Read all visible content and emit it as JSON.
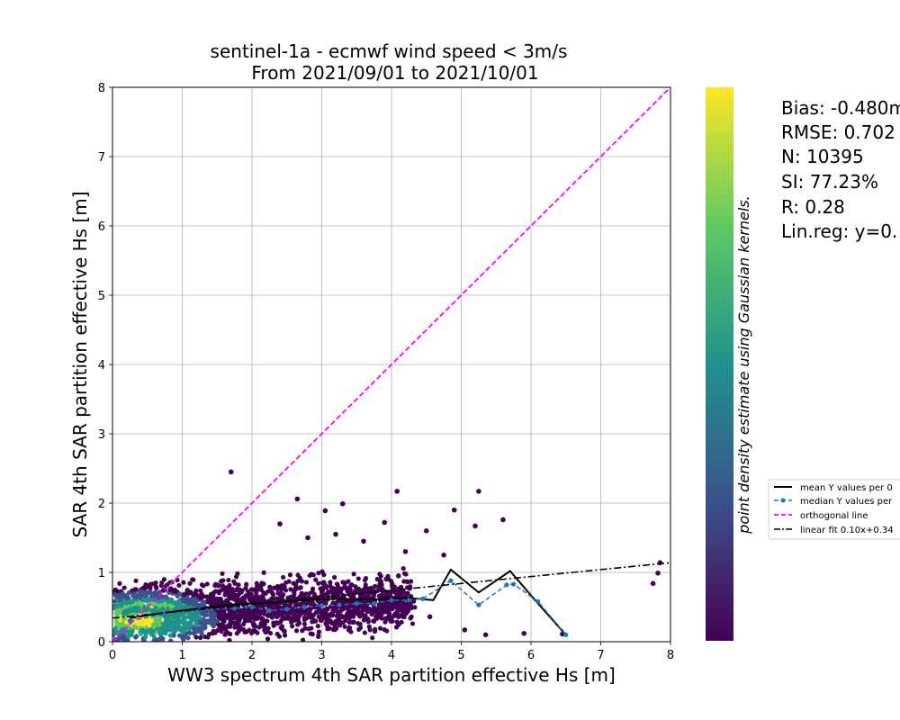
{
  "chart_data": {
    "type": "scatter",
    "title": [
      "sentinel-1a - ecmwf wind speed < 3m/s",
      "From 2021/09/01 to 2021/10/01"
    ],
    "xlabel": "WW3 spectrum 4th SAR partition effective Hs [m]",
    "ylabel": "SAR 4th SAR partition effective Hs [m]",
    "xlim": [
      0,
      8
    ],
    "ylim": [
      0,
      8
    ],
    "xticks": [
      "0",
      "1",
      "2",
      "3",
      "4",
      "5",
      "6",
      "7",
      "8"
    ],
    "yticks": [
      "0",
      "1",
      "2",
      "3",
      "4",
      "5",
      "6",
      "7",
      "8"
    ],
    "grid": true,
    "colorbar_label": "point density estimate using Gaussian kernels.",
    "colormap": [
      "#440154",
      "#3b528b",
      "#21918c",
      "#5ec962",
      "#fde725"
    ],
    "stats": [
      "Bias: -0.480m",
      "RMSE: 0.702",
      "N: 10395",
      "SI: 77.23%",
      "R: 0.28",
      "Lin.reg: y=0."
    ],
    "legend": {
      "placement": "right",
      "entries": [
        "mean Y values per 0",
        "median Y values per",
        "orthogonal line",
        "linear fit 0.10x+0.34"
      ]
    },
    "series": [
      {
        "name": "mean Y values per 0",
        "x": [
          0.25,
          0.75,
          1.25,
          1.75,
          2.25,
          2.75,
          3.25,
          3.75,
          4.25,
          4.6,
          4.85,
          5.25,
          5.7,
          6.1,
          6.5
        ],
        "y": [
          0.34,
          0.42,
          0.48,
          0.54,
          0.56,
          0.6,
          0.62,
          0.61,
          0.63,
          0.6,
          1.04,
          0.71,
          1.02,
          0.55,
          0.1
        ]
      },
      {
        "name": "median Y values per",
        "x": [
          0.25,
          0.75,
          1.25,
          1.75,
          2.0,
          2.25,
          2.5,
          2.75,
          3.0,
          3.25,
          3.5,
          3.75,
          4.0,
          4.25,
          4.45,
          4.85,
          5.25,
          5.65,
          5.75,
          6.1,
          6.5
        ],
        "y": [
          0.3,
          0.4,
          0.46,
          0.48,
          0.5,
          0.45,
          0.47,
          0.5,
          0.52,
          0.53,
          0.55,
          0.55,
          0.6,
          0.6,
          0.62,
          0.88,
          0.53,
          0.82,
          0.83,
          0.58,
          0.1
        ]
      },
      {
        "name": "orthogonal line",
        "x": [
          0,
          8
        ],
        "y": [
          0,
          8
        ]
      },
      {
        "name": "linear fit 0.10x+0.34",
        "x": [
          0,
          8
        ],
        "y": [
          0.34,
          1.14
        ]
      }
    ],
    "outliers": {
      "x": [
        1.7,
        2.65,
        3.3,
        4.08,
        5.25,
        4.9,
        3.05,
        2.4,
        3.9,
        4.5,
        5.2,
        5.6,
        4.2,
        4.75,
        7.75,
        7.82,
        7.85,
        6.45,
        5.9,
        5.05,
        4.55,
        3.6,
        3.2,
        2.8,
        4.1,
        5.35,
        2.9
      ],
      "y": [
        2.45,
        2.06,
        1.99,
        2.17,
        2.17,
        1.9,
        1.89,
        1.7,
        1.72,
        1.6,
        1.67,
        1.76,
        1.3,
        1.25,
        0.84,
        0.99,
        1.14,
        0.11,
        0.12,
        0.17,
        0.36,
        1.45,
        1.55,
        1.5,
        0.95,
        0.1,
        0.3
      ]
    }
  }
}
